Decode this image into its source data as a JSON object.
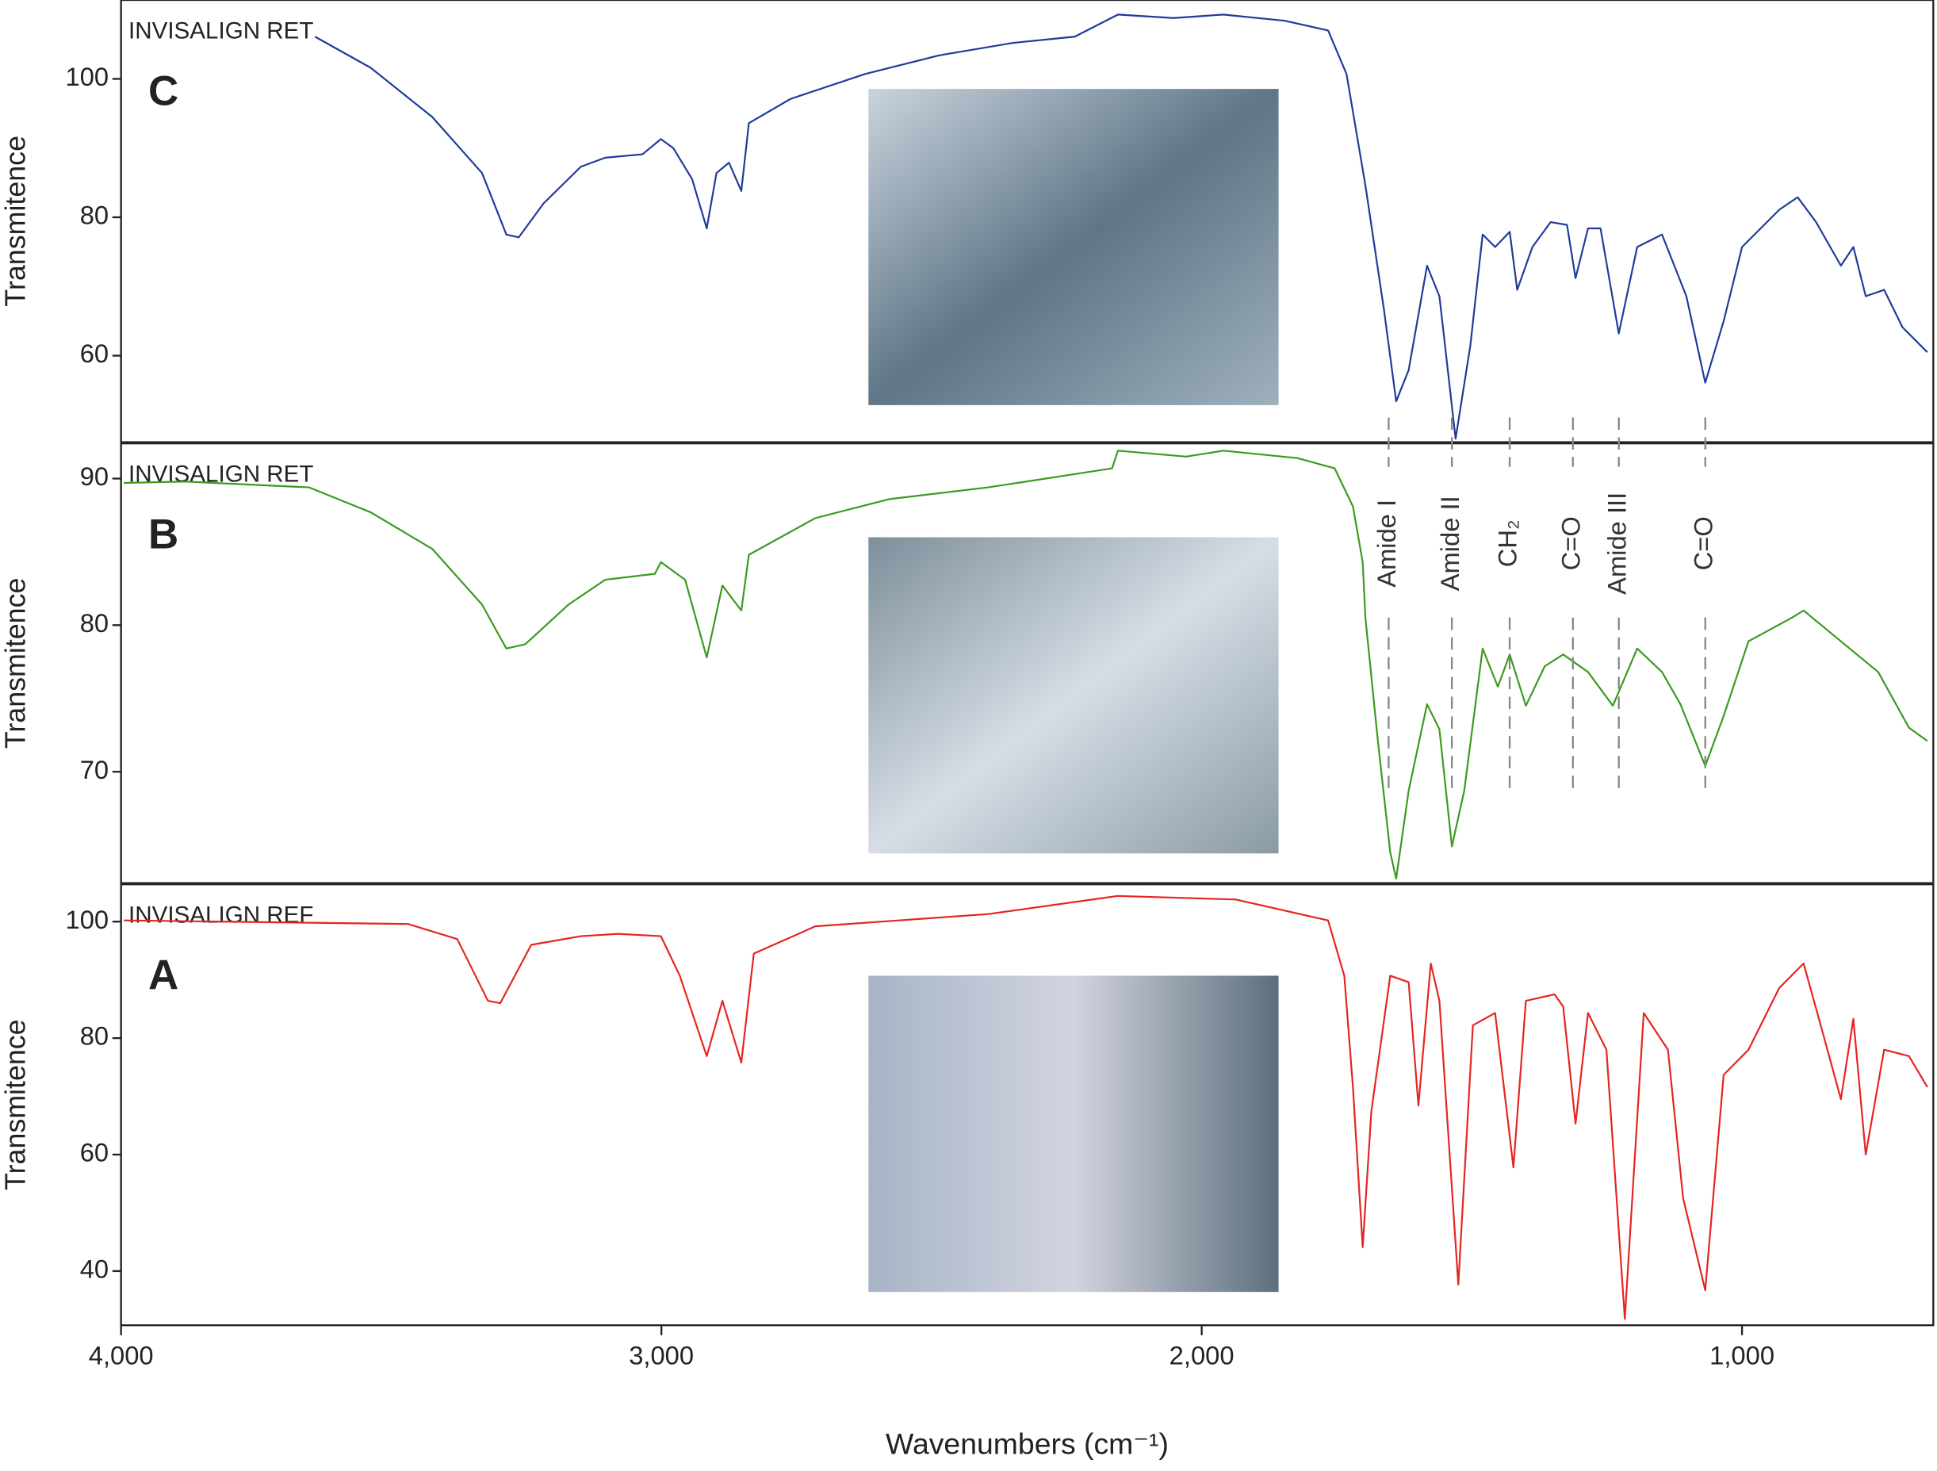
{
  "chart_data": [
    {
      "type": "line",
      "panel_label": "C",
      "ylabel": "Transmitence",
      "xlim": [
        4000,
        646
      ],
      "ylim": [
        47.5,
        111.4
      ],
      "yticks": [
        60,
        80,
        100
      ],
      "x": [
        3641,
        3538,
        3424,
        3332,
        3287,
        3264,
        3218,
        3149,
        3104,
        3035,
        3001,
        2978,
        2943,
        2916,
        2898,
        2875,
        2852,
        2838,
        2761,
        2623,
        2486,
        2349,
        2235,
        2155,
        2052,
        1960,
        1846,
        1766,
        1732,
        1697,
        1663,
        1640,
        1617,
        1583,
        1560,
        1530,
        1503,
        1480,
        1457,
        1430,
        1416,
        1388,
        1354,
        1324,
        1308,
        1285,
        1262,
        1228,
        1194,
        1148,
        1103,
        1068,
        1034,
        1000,
        931,
        897,
        863,
        817,
        794,
        771,
        737,
        703,
        657
      ],
      "series": [
        {
          "name": "INVISALIGN RET",
          "color": "#1f3a9a",
          "values": [
            106.1,
            101.6,
            94.5,
            86.4,
            77.5,
            77.1,
            82,
            87.3,
            88.6,
            89.1,
            91.3,
            90,
            85.5,
            78.4,
            86.4,
            87.9,
            83.8,
            93.6,
            97.1,
            100.7,
            103.4,
            105.2,
            106.1,
            109.3,
            108.8,
            109.3,
            108.4,
            107,
            100.7,
            84.6,
            66.8,
            53.4,
            57.9,
            73,
            68.6,
            48,
            61.4,
            77.5,
            75.7,
            77.9,
            69.5,
            75.7,
            79.3,
            78.9,
            71.2,
            78.4,
            78.4,
            63.2,
            75.7,
            77.5,
            68.6,
            56.1,
            65,
            75.7,
            81.1,
            82.9,
            79.3,
            73,
            75.7,
            68.6,
            69.5,
            64.1,
            60.5
          ]
        }
      ]
    },
    {
      "type": "line",
      "panel_label": "B",
      "ylabel": "Transmitence",
      "xlim": [
        4000,
        646
      ],
      "ylim": [
        62.4,
        92.4
      ],
      "yticks": [
        70,
        80,
        90
      ],
      "x": [
        3995,
        3881,
        3652,
        3538,
        3424,
        3332,
        3287,
        3252,
        3172,
        3104,
        3012,
        3001,
        2956,
        2916,
        2887,
        2852,
        2838,
        2715,
        2578,
        2395,
        2166,
        2155,
        2029,
        1960,
        1823,
        1754,
        1720,
        1702,
        1697,
        1674,
        1651,
        1640,
        1617,
        1583,
        1560,
        1537,
        1514,
        1480,
        1452,
        1430,
        1400,
        1365,
        1331,
        1285,
        1239,
        1194,
        1148,
        1114,
        1068,
        1034,
        988,
        908,
        886,
        817,
        748,
        691,
        657
      ],
      "series": [
        {
          "name": "INVISALIGN RET",
          "color": "#3a9a1f",
          "values": [
            89.7,
            89.8,
            89.4,
            87.7,
            85.2,
            81.4,
            78.4,
            78.7,
            81.4,
            83.1,
            83.5,
            84.3,
            83.1,
            77.8,
            82.7,
            81,
            84.8,
            87.3,
            88.6,
            89.4,
            90.7,
            91.9,
            91.5,
            91.9,
            91.4,
            90.7,
            88.1,
            84.3,
            80.5,
            72.1,
            64.5,
            62.7,
            68.7,
            74.6,
            72.9,
            64.9,
            68.7,
            78.4,
            75.8,
            78,
            74.5,
            77.2,
            78,
            76.8,
            74.5,
            78.4,
            76.8,
            74.6,
            70.4,
            73.8,
            78.9,
            80.5,
            81,
            78.9,
            76.8,
            73,
            72.1
          ]
        }
      ],
      "annotations": [
        {
          "label": "Amide I",
          "x": 1654
        },
        {
          "label": "Amide II",
          "x": 1537
        },
        {
          "label": "CH₂",
          "x": 1430
        },
        {
          "label": "C=O",
          "x": 1313
        },
        {
          "label": "Amide III",
          "x": 1228
        },
        {
          "label": "C=O",
          "x": 1068
        }
      ]
    },
    {
      "type": "line",
      "panel_label": "A",
      "ylabel": "Transmitence",
      "xlabel": "Wavenumbers (cm⁻¹)",
      "xlim": [
        4000,
        646
      ],
      "ylim": [
        30.7,
        106.4
      ],
      "yticks": [
        40,
        60,
        80,
        100
      ],
      "xticks": [
        {
          "value": 4000,
          "label": "4,000"
        },
        {
          "value": 3000,
          "label": "3,000"
        },
        {
          "value": 2000,
          "label": "2,000"
        },
        {
          "value": 1000,
          "label": "1,000"
        }
      ],
      "x": [
        3995,
        3469,
        3378,
        3321,
        3298,
        3241,
        3149,
        3081,
        3001,
        2966,
        2916,
        2887,
        2852,
        2829,
        2715,
        2395,
        2155,
        1937,
        1766,
        1736,
        1720,
        1702,
        1686,
        1651,
        1617,
        1599,
        1576,
        1560,
        1525,
        1498,
        1457,
        1423,
        1400,
        1347,
        1331,
        1308,
        1285,
        1251,
        1217,
        1182,
        1137,
        1109,
        1068,
        1034,
        988,
        931,
        886,
        851,
        817,
        794,
        771,
        737,
        691,
        657
      ],
      "series": [
        {
          "name": "INVISALIGN REF",
          "color": "#e52421",
          "values": [
            100.2,
            99.6,
            97,
            86.4,
            86,
            96,
            97.5,
            97.9,
            97.5,
            90.7,
            76.9,
            86.4,
            75.8,
            94.5,
            99.2,
            101.3,
            104.4,
            103.8,
            100.2,
            90.7,
            71.6,
            44.1,
            67.4,
            90.7,
            89.6,
            68.4,
            92.8,
            86.4,
            37.7,
            82.2,
            84.3,
            57.8,
            86.4,
            87.5,
            85.4,
            65.3,
            84.3,
            78,
            31.8,
            84.3,
            78,
            52.5,
            36.7,
            73.7,
            78,
            88.6,
            92.8,
            81.1,
            69.5,
            83.3,
            60,
            78,
            76.9,
            71.6
          ]
        }
      ]
    }
  ]
}
